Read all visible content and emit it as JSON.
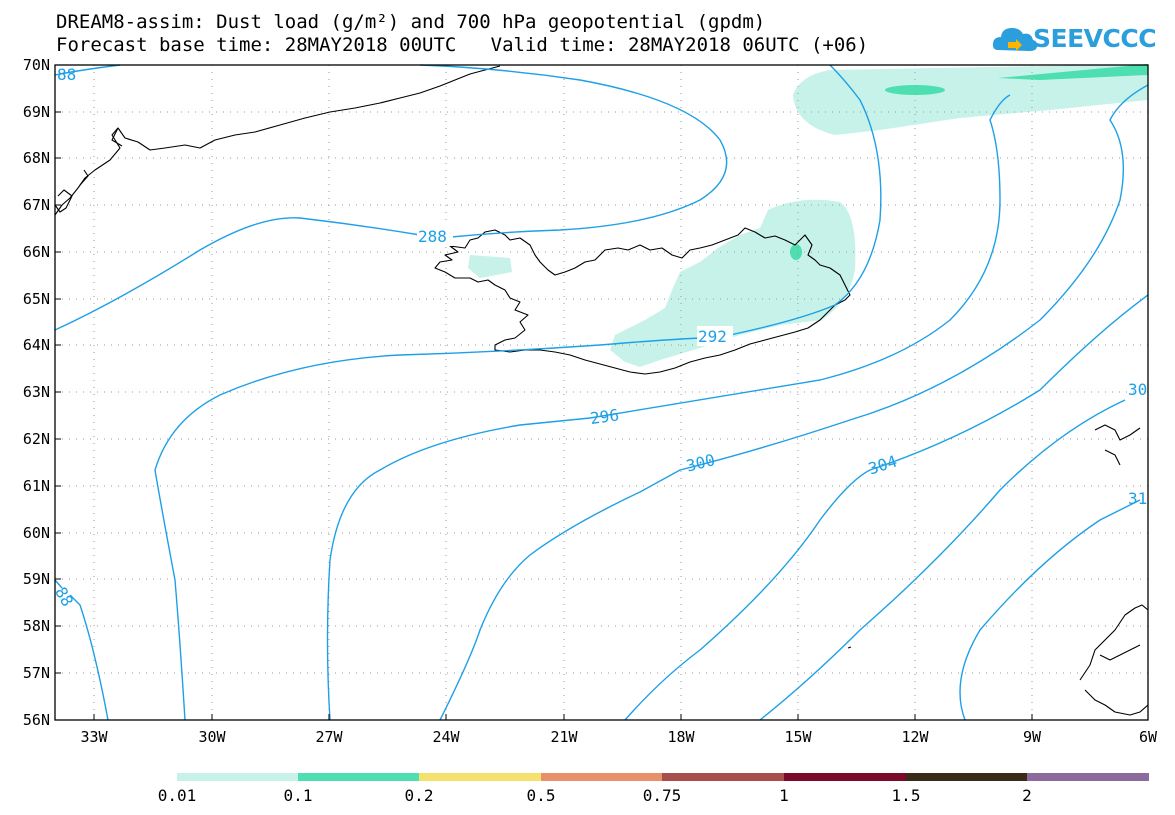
{
  "header": {
    "title_line1": "DREAM8-assim: Dust load (g/m²) and 700 hPa geopotential (gpdm)",
    "title_line2": "Forecast base time: 28MAY2018 00UTC   Valid time: 28MAY2018 06UTC (+06)"
  },
  "logo": {
    "text": "SEEVCCC"
  },
  "map": {
    "lat_labels": [
      "70N",
      "69N",
      "68N",
      "67N",
      "66N",
      "65N",
      "64N",
      "63N",
      "62N",
      "61N",
      "60N",
      "59N",
      "58N",
      "57N",
      "56N"
    ],
    "lon_labels": [
      "33W",
      "30W",
      "27W",
      "24W",
      "21W",
      "18W",
      "15W",
      "12W",
      "9W",
      "6W"
    ],
    "contour_labels": [
      "288",
      "292",
      "296",
      "300",
      "304",
      "88",
      "88",
      "30",
      "31"
    ],
    "contour_color": "#1ea0e6",
    "dust_colors": {
      "level1": "#c6f2ea",
      "level2": "#4ddfb0"
    }
  },
  "colorbar": {
    "colors": [
      "#c6f2ea",
      "#4ddfb0",
      "#f5e26e",
      "#e8906a",
      "#a84e4b",
      "#7a0a2a",
      "#3a2a18",
      "#8c6a9e"
    ],
    "labels": [
      "0.01",
      "0.1",
      "0.2",
      "0.5",
      "0.75",
      "1",
      "1.5",
      "2"
    ]
  }
}
